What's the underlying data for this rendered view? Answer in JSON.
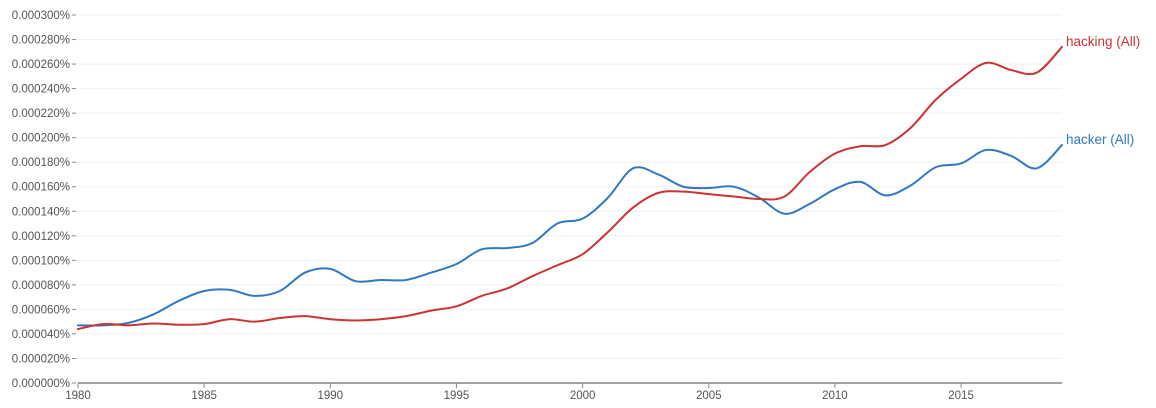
{
  "chart_data": {
    "type": "line",
    "title": "",
    "xlabel": "",
    "ylabel": "",
    "xlim": [
      1980,
      2019
    ],
    "ylim": [
      0,
      0.0003
    ],
    "grid": true,
    "x_ticks": [
      "1980",
      "1985",
      "1990",
      "1995",
      "2000",
      "2005",
      "2010",
      "2015"
    ],
    "y_ticks": [
      "0.000000%",
      "0.000020%",
      "0.000040%",
      "0.000060%",
      "0.000080%",
      "0.000100%",
      "0.000120%",
      "0.000140%",
      "0.000160%",
      "0.000180%",
      "0.000200%",
      "0.000220%",
      "0.000240%",
      "0.000260%",
      "0.000280%",
      "0.000300%"
    ],
    "x": [
      1980,
      1981,
      1982,
      1983,
      1984,
      1985,
      1986,
      1987,
      1988,
      1989,
      1990,
      1991,
      1992,
      1993,
      1994,
      1995,
      1996,
      1997,
      1998,
      1999,
      2000,
      2001,
      2002,
      2003,
      2004,
      2005,
      2006,
      2007,
      2008,
      2009,
      2010,
      2011,
      2012,
      2013,
      2014,
      2015,
      2016,
      2017,
      2018,
      2019
    ],
    "series": [
      {
        "name": "hacking (All)",
        "color": "#cc3333",
        "values": [
          4.4e-05,
          4.8e-05,
          4.7e-05,
          4.85e-05,
          4.75e-05,
          4.8e-05,
          5.2e-05,
          5e-05,
          5.3e-05,
          5.45e-05,
          5.2e-05,
          5.1e-05,
          5.2e-05,
          5.45e-05,
          5.9e-05,
          6.25e-05,
          7.1e-05,
          7.7e-05,
          8.7e-05,
          9.6e-05,
          0.000105,
          0.000123,
          0.000143,
          0.000155,
          0.000156,
          0.000154,
          0.000152,
          0.00015,
          0.000152,
          0.000172,
          0.000187,
          0.000193,
          0.000194,
          0.000208,
          0.000231,
          0.000248,
          0.000261,
          0.000255,
          0.000253,
          0.000274
        ]
      },
      {
        "name": "hacker (All)",
        "color": "#2f78c4",
        "values": [
          4.7e-05,
          4.7e-05,
          4.9e-05,
          5.6e-05,
          6.7e-05,
          7.5e-05,
          7.6e-05,
          7.1e-05,
          7.5e-05,
          9e-05,
          9.3e-05,
          8.3e-05,
          8.4e-05,
          8.4e-05,
          9e-05,
          9.7e-05,
          0.000109,
          0.00011,
          0.000114,
          0.00013,
          0.000134,
          0.000151,
          0.000175,
          0.00017,
          0.00016,
          0.000159,
          0.00016,
          0.000151,
          0.000138,
          0.000146,
          0.000158,
          0.000164,
          0.000153,
          0.000161,
          0.000176,
          0.000179,
          0.00019,
          0.000185,
          0.000175,
          0.000194
        ]
      }
    ]
  }
}
